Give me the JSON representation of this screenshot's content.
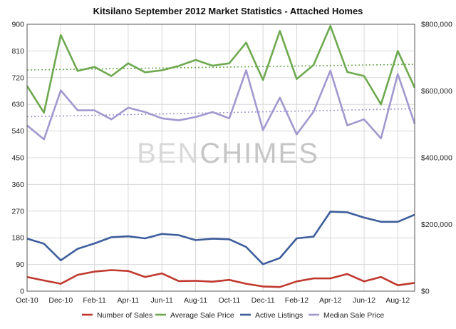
{
  "chart_data": {
    "type": "line",
    "title": "Kitsilano September 2012 Market Statistics - Attached Homes",
    "watermark": {
      "part1": "BEN",
      "part2": "CHIMES"
    },
    "categories": [
      "Oct-10",
      "Nov-10",
      "Dec-10",
      "Jan-11",
      "Feb-11",
      "Mar-11",
      "Apr-11",
      "May-11",
      "Jun-11",
      "Jul-11",
      "Aug-11",
      "Sep-11",
      "Oct-11",
      "Nov-11",
      "Dec-11",
      "Jan-12",
      "Feb-12",
      "Mar-12",
      "Apr-12",
      "May-12",
      "Jun-12",
      "Jul-12",
      "Aug-12",
      "Sep-12"
    ],
    "x_tick_labels": [
      "Oct-10",
      "Dec-10",
      "Feb-11",
      "Apr-11",
      "Jun-11",
      "Aug-11",
      "Oct-11",
      "Dec-11",
      "Feb-12",
      "Apr-12",
      "Jun-12",
      "Aug-12"
    ],
    "y_left": {
      "min": 0,
      "max": 900,
      "ticks": [
        "0",
        "90",
        "180",
        "270",
        "360",
        "450",
        "540",
        "630",
        "720",
        "810",
        "900"
      ]
    },
    "y_right": {
      "min": 0,
      "max": 800000,
      "ticks": [
        {
          "value": 0,
          "label": "$0"
        },
        {
          "value": 200000,
          "label": "$200,000"
        },
        {
          "value": 400000,
          "label": "$400,000"
        },
        {
          "value": 600000,
          "label": "$600,000"
        },
        {
          "value": 800000,
          "label": "$800,000"
        }
      ]
    },
    "grid": true,
    "legend_position": "bottom",
    "series": [
      {
        "name": "Number of Sales",
        "axis": "left",
        "color": "#c0392f",
        "values": [
          48,
          36,
          25,
          55,
          66,
          71,
          68,
          48,
          60,
          34,
          35,
          32,
          38,
          25,
          16,
          14,
          33,
          43,
          43,
          58,
          33,
          48,
          20,
          28
        ]
      },
      {
        "name": "Average Sale Price",
        "axis": "right",
        "color": "#6ea94f",
        "values": [
          615000,
          535000,
          768000,
          660000,
          672000,
          645000,
          683000,
          656000,
          662000,
          675000,
          693000,
          676000,
          683000,
          745000,
          633000,
          780000,
          636000,
          678000,
          795000,
          657000,
          645000,
          560000,
          720000,
          610000
        ],
        "trend": [
          663000,
          680000
        ]
      },
      {
        "name": "Active Listings",
        "axis": "left",
        "color": "#3d5d9c",
        "values": [
          177,
          160,
          104,
          143,
          161,
          182,
          185,
          178,
          193,
          189,
          172,
          177,
          175,
          149,
          91,
          112,
          178,
          184,
          268,
          266,
          248,
          234,
          234,
          258
        ]
      },
      {
        "name": "Median Sale Price",
        "axis": "right",
        "color": "#a398cf",
        "values": [
          497000,
          455000,
          602000,
          542000,
          542000,
          515000,
          550000,
          537000,
          518000,
          512000,
          522000,
          537000,
          518000,
          662000,
          483000,
          580000,
          470000,
          538000,
          661000,
          497000,
          515000,
          458000,
          651000,
          502000
        ],
        "trend": [
          523000,
          547000
        ]
      }
    ]
  }
}
